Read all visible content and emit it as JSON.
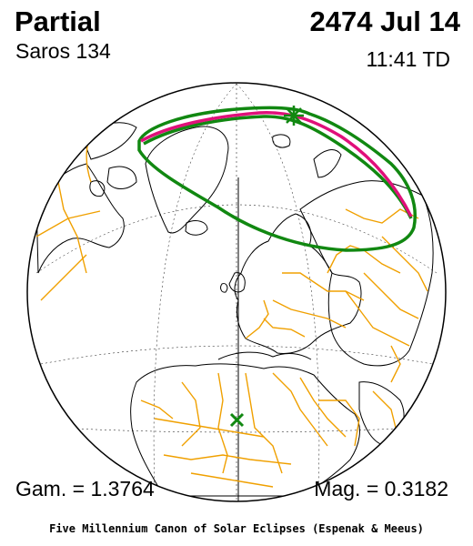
{
  "header": {
    "eclipse_type": "Partial",
    "saros": "Saros 134",
    "date": "2474 Jul 14",
    "time": "11:41 TD"
  },
  "footer": {
    "gamma": "Gam. = 1.3764",
    "magnitude": "Mag. = 0.3182",
    "credit": "Five Millennium Canon of Solar Eclipses (Espenak & Meeus)"
  },
  "colors": {
    "night_shade": "#c8c8c8",
    "borders": "#f0a000",
    "penumbra_limit": "#118811",
    "max_eclipse_curve": "#e0107a",
    "coastlines": "#000000"
  },
  "markers": {
    "greatest_eclipse": "green-star-icon",
    "subsolar_point": "green-x-icon"
  }
}
